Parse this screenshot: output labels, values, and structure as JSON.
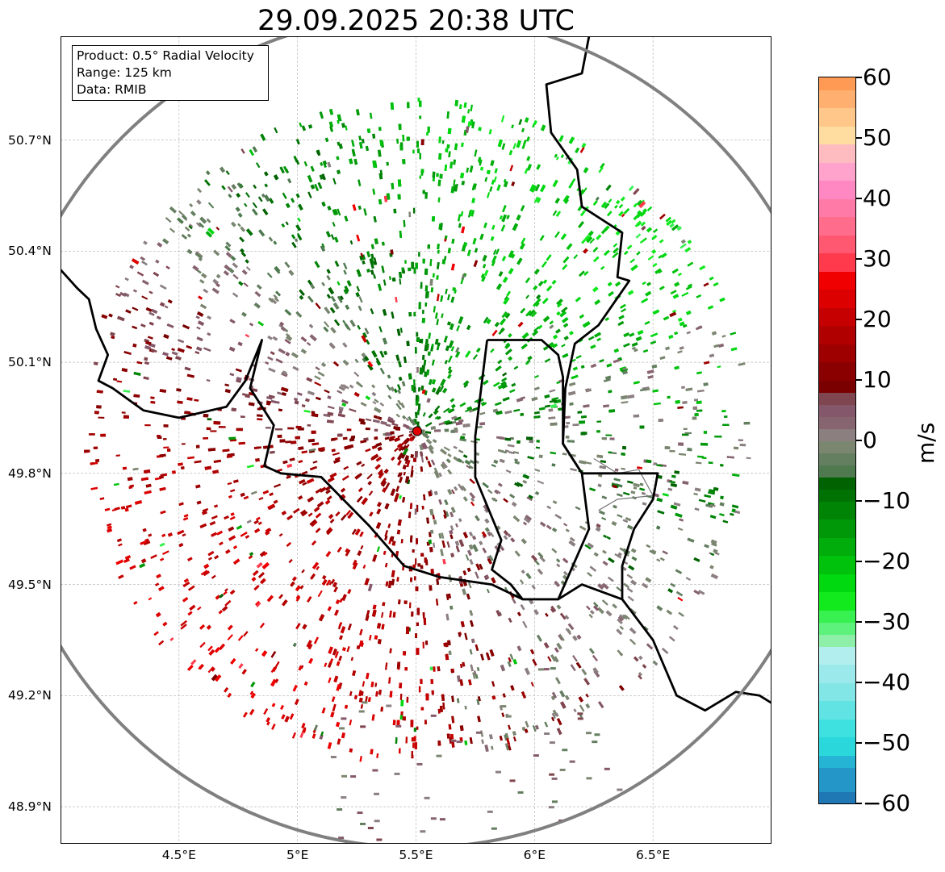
{
  "title": "29.09.2025 20:38 UTC",
  "info_box": {
    "product": "Product: 0.5° Radial Velocity",
    "range": "Range: 125 km",
    "source": "Data: RMIB"
  },
  "map": {
    "extent": {
      "lon": [
        4.0,
        7.0
      ],
      "lat": [
        48.8,
        50.98
      ]
    },
    "radar_site": {
      "lon": 5.505,
      "lat": 49.914
    },
    "range_km": 125,
    "lat_labels": [
      {
        "value": 50.7,
        "text": "50.7°N"
      },
      {
        "value": 50.4,
        "text": "50.4°N"
      },
      {
        "value": 50.1,
        "text": "50.1°N"
      },
      {
        "value": 49.8,
        "text": "49.8°N"
      },
      {
        "value": 49.5,
        "text": "49.5°N"
      },
      {
        "value": 49.2,
        "text": "49.2°N"
      },
      {
        "value": 48.9,
        "text": "48.9°N"
      }
    ],
    "lon_labels": [
      {
        "value": 4.5,
        "text": "4.5°E"
      },
      {
        "value": 5.0,
        "text": "5°E"
      },
      {
        "value": 5.5,
        "text": "5.5°E"
      },
      {
        "value": 6.0,
        "text": "6°E"
      },
      {
        "value": 6.5,
        "text": "6.5°E"
      }
    ],
    "grid": true,
    "colors": {
      "border": "#000000",
      "range_ring": "#808080",
      "radar_site": "#e00000",
      "grid": "#b0b0b0"
    },
    "borders": [
      [
        [
          4.0,
          50.35
        ],
        [
          4.07,
          50.3
        ],
        [
          4.12,
          50.27
        ],
        [
          4.15,
          50.19
        ],
        [
          4.2,
          50.12
        ],
        [
          4.16,
          50.05
        ],
        [
          4.22,
          50.03
        ],
        [
          4.35,
          49.97
        ],
        [
          4.5,
          49.95
        ],
        [
          4.7,
          49.98
        ],
        [
          4.78,
          50.05
        ],
        [
          4.85,
          50.16
        ],
        [
          4.8,
          50.03
        ],
        [
          4.9,
          49.93
        ],
        [
          4.86,
          49.82
        ],
        [
          4.93,
          49.8
        ],
        [
          5.1,
          49.79
        ],
        [
          5.3,
          49.66
        ],
        [
          5.45,
          49.55
        ],
        [
          5.6,
          49.52
        ],
        [
          5.82,
          49.5
        ],
        [
          5.95,
          49.46
        ],
        [
          6.1,
          49.46
        ],
        [
          6.2,
          49.5
        ],
        [
          6.37,
          49.46
        ],
        [
          6.5,
          49.35
        ],
        [
          6.6,
          49.2
        ],
        [
          6.72,
          49.16
        ],
        [
          6.85,
          49.21
        ],
        [
          6.95,
          49.2
        ],
        [
          7.0,
          49.18
        ]
      ],
      [
        [
          6.23,
          50.98
        ],
        [
          6.2,
          50.88
        ],
        [
          6.05,
          50.85
        ],
        [
          6.07,
          50.72
        ],
        [
          6.18,
          50.62
        ],
        [
          6.2,
          50.52
        ],
        [
          6.37,
          50.45
        ],
        [
          6.35,
          50.33
        ],
        [
          6.4,
          50.32
        ],
        [
          6.27,
          50.2
        ],
        [
          6.17,
          50.15
        ],
        [
          6.13,
          50.03
        ],
        [
          6.12,
          49.88
        ],
        [
          6.2,
          49.8
        ],
        [
          6.52,
          49.8
        ],
        [
          6.5,
          49.73
        ],
        [
          6.42,
          49.65
        ],
        [
          6.37,
          49.55
        ],
        [
          6.37,
          49.46
        ]
      ],
      [
        [
          5.8,
          50.16
        ],
        [
          6.03,
          50.16
        ],
        [
          6.1,
          50.12
        ],
        [
          6.12,
          50.06
        ],
        [
          6.12,
          49.88
        ],
        [
          6.2,
          49.8
        ],
        [
          6.23,
          49.65
        ],
        [
          6.1,
          49.46
        ],
        [
          5.95,
          49.46
        ],
        [
          5.9,
          49.5
        ],
        [
          5.82,
          49.54
        ],
        [
          5.86,
          49.62
        ],
        [
          5.75,
          49.79
        ],
        [
          5.75,
          49.9
        ],
        [
          5.8,
          50.16
        ]
      ]
    ],
    "thin_borders": [
      [
        [
          6.25,
          49.84
        ],
        [
          6.35,
          49.8
        ],
        [
          6.44,
          49.81
        ],
        [
          6.5,
          49.74
        ],
        [
          6.35,
          49.73
        ],
        [
          6.27,
          49.7
        ]
      ]
    ]
  },
  "colorbar": {
    "unit": "m/s",
    "min": -60,
    "max": 60,
    "ticks": [
      {
        "value": 60,
        "text": "60"
      },
      {
        "value": 50,
        "text": "50"
      },
      {
        "value": 40,
        "text": "40"
      },
      {
        "value": 30,
        "text": "30"
      },
      {
        "value": 20,
        "text": "20"
      },
      {
        "value": 10,
        "text": "10"
      },
      {
        "value": 0,
        "text": "0"
      },
      {
        "value": -10,
        "text": "−10"
      },
      {
        "value": -20,
        "text": "−20"
      },
      {
        "value": -30,
        "text": "−30"
      },
      {
        "value": -40,
        "text": "−40"
      },
      {
        "value": -50,
        "text": "−50"
      },
      {
        "value": -60,
        "text": "−60"
      }
    ],
    "bands": [
      {
        "from": -60,
        "to": -58,
        "color": "#1f77b4"
      },
      {
        "from": -58,
        "to": -54,
        "color": "#2496c8"
      },
      {
        "from": -54,
        "to": -52,
        "color": "#26b4d4"
      },
      {
        "from": -52,
        "to": -49,
        "color": "#2ad8dc"
      },
      {
        "from": -49,
        "to": -46,
        "color": "#3fe0e0"
      },
      {
        "from": -46,
        "to": -43,
        "color": "#62e3e3"
      },
      {
        "from": -43,
        "to": -40,
        "color": "#82e6e6"
      },
      {
        "from": -40,
        "to": -37,
        "color": "#9be9ea"
      },
      {
        "from": -37,
        "to": -34,
        "color": "#b2eeee"
      },
      {
        "from": -34,
        "to": -32,
        "color": "#8ef0a8"
      },
      {
        "from": -32,
        "to": -30,
        "color": "#5cf27c"
      },
      {
        "from": -30,
        "to": -28,
        "color": "#38f04f"
      },
      {
        "from": -28,
        "to": -25,
        "color": "#12ea1e"
      },
      {
        "from": -25,
        "to": -22,
        "color": "#00d810"
      },
      {
        "from": -22,
        "to": -19,
        "color": "#00c20c"
      },
      {
        "from": -19,
        "to": -16,
        "color": "#00ad0a"
      },
      {
        "from": -16,
        "to": -13,
        "color": "#009808"
      },
      {
        "from": -13,
        "to": -10,
        "color": "#008406"
      },
      {
        "from": -10,
        "to": -8,
        "color": "#007204"
      },
      {
        "from": -8,
        "to": -6,
        "color": "#006200"
      },
      {
        "from": -6,
        "to": -4,
        "color": "#4f7a50"
      },
      {
        "from": -4,
        "to": -2,
        "color": "#647e60"
      },
      {
        "from": -2,
        "to": 0,
        "color": "#7a8670"
      },
      {
        "from": 0,
        "to": 2,
        "color": "#8b7f80"
      },
      {
        "from": 2,
        "to": 4,
        "color": "#876570"
      },
      {
        "from": 4,
        "to": 6,
        "color": "#84586a"
      },
      {
        "from": 6,
        "to": 8,
        "color": "#7f4650"
      },
      {
        "from": 8,
        "to": 10,
        "color": "#7a0000"
      },
      {
        "from": 10,
        "to": 13,
        "color": "#8a0000"
      },
      {
        "from": 13,
        "to": 16,
        "color": "#9e0000"
      },
      {
        "from": 16,
        "to": 19,
        "color": "#b00000"
      },
      {
        "from": 19,
        "to": 22,
        "color": "#c60000"
      },
      {
        "from": 22,
        "to": 25,
        "color": "#dc0000"
      },
      {
        "from": 25,
        "to": 28,
        "color": "#f00000"
      },
      {
        "from": 28,
        "to": 31,
        "color": "#ff3a4c"
      },
      {
        "from": 31,
        "to": 34,
        "color": "#ff5870"
      },
      {
        "from": 34,
        "to": 37,
        "color": "#ff6c8c"
      },
      {
        "from": 37,
        "to": 40,
        "color": "#ff7aa6"
      },
      {
        "from": 40,
        "to": 43,
        "color": "#ff88c2"
      },
      {
        "from": 43,
        "to": 46,
        "color": "#ffa2cc"
      },
      {
        "from": 46,
        "to": 49,
        "color": "#ffbcc0"
      },
      {
        "from": 49,
        "to": 52,
        "color": "#ffdca0"
      },
      {
        "from": 52,
        "to": 55,
        "color": "#ffc88a"
      },
      {
        "from": 55,
        "to": 58,
        "color": "#ffb070"
      },
      {
        "from": 58,
        "to": 60,
        "color": "#ff9a55"
      }
    ]
  },
  "velocity_field": {
    "description_sectors": [
      {
        "az_from": 300,
        "az_to": 360,
        "color": "#007000"
      },
      {
        "az_from": 0,
        "az_to": 70,
        "color": "#007a00"
      },
      {
        "az_from": 70,
        "az_to": 130,
        "color": "#647e60"
      },
      {
        "az_from": 130,
        "az_to": 170,
        "color": "#8b7f80"
      },
      {
        "az_from": 170,
        "az_to": 200,
        "color": "#8a0000"
      },
      {
        "az_from": 200,
        "az_to": 260,
        "color": "#8a0000"
      },
      {
        "az_from": 260,
        "az_to": 300,
        "color": "#84586a"
      }
    ]
  }
}
